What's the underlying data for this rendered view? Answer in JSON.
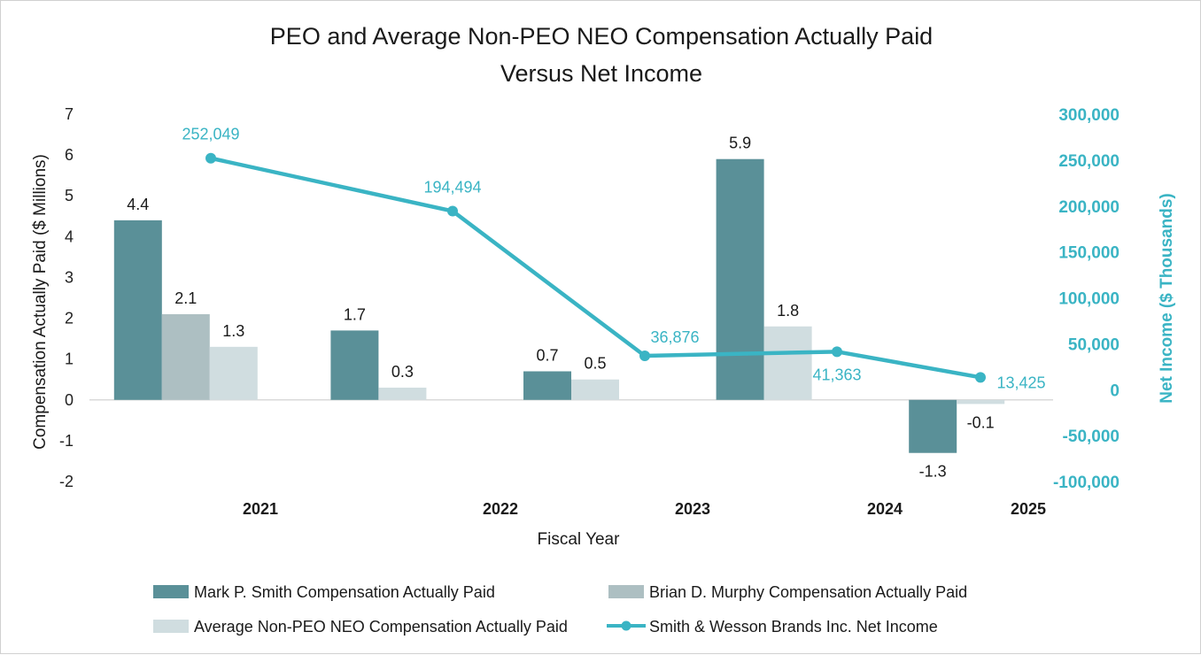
{
  "chart_data": {
    "type": "bar",
    "title": [
      "PEO and Average Non-PEO NEO Compensation Actually Paid",
      "Versus Net Income"
    ],
    "xlabel": "Fiscal Year",
    "ylabel": "Compensation Actually Paid ($ Millions)",
    "ylabel_right": "Net Income ($ Thousands)",
    "categories": [
      "2021",
      "2022",
      "2023",
      "2024",
      "2025"
    ],
    "ylim": [
      -2,
      7
    ],
    "yticks": [
      "-2",
      "-1",
      "0",
      "1",
      "2",
      "3",
      "4",
      "5",
      "6",
      "7"
    ],
    "ylim_right": [
      -100000,
      300000
    ],
    "yticks_right": [
      "-100,000",
      "-50,000",
      "0",
      "50,000",
      "100,000",
      "150,000",
      "200,000",
      "250,000",
      "300,000"
    ],
    "series": [
      {
        "name": "Mark P. Smith Compensation Actually Paid",
        "type": "bar",
        "axis": "left",
        "color": "#5a9098",
        "values": [
          4.4,
          1.7,
          0.7,
          5.9,
          -1.3
        ],
        "labels": [
          "4.4",
          "1.7",
          "0.7",
          "5.9",
          "-1.3"
        ]
      },
      {
        "name": "Brian D. Murphy Compensation Actually Paid",
        "type": "bar",
        "axis": "left",
        "color": "#adbfc2",
        "values": [
          2.1,
          null,
          null,
          null,
          null
        ],
        "labels": [
          "2.1",
          "",
          "",
          "",
          ""
        ]
      },
      {
        "name": "Average Non-PEO NEO Compensation Actually Paid",
        "type": "bar",
        "axis": "left",
        "color": "#d0dde0",
        "values": [
          1.3,
          0.3,
          0.5,
          1.8,
          -0.1
        ],
        "labels": [
          "1.3",
          "0.3",
          "0.5",
          "1.8",
          "-0.1"
        ]
      },
      {
        "name": "Smith & Wesson Brands Inc. Net Income",
        "type": "line",
        "axis": "right",
        "color": "#3ab4c4",
        "values": [
          252049,
          194494,
          36876,
          41363,
          13425
        ],
        "labels": [
          "252,049",
          "194,494",
          "36,876",
          "41,363",
          "13,425"
        ]
      }
    ],
    "legend": "bottom"
  }
}
